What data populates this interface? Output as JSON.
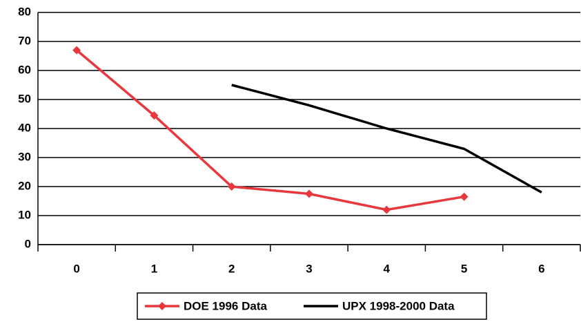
{
  "chart_data": {
    "type": "line",
    "categories": [
      "0",
      "1",
      "2",
      "3",
      "4",
      "5",
      "6"
    ],
    "series": [
      {
        "name": "DOE 1996 Data",
        "color": "#e8383d",
        "marker": "diamond",
        "values": [
          67,
          44.5,
          20,
          17.5,
          12,
          16.5,
          null
        ]
      },
      {
        "name": "UPX 1998-2000 Data",
        "color": "#000000",
        "marker": "none",
        "values": [
          null,
          null,
          55,
          48,
          40,
          33,
          18
        ]
      }
    ],
    "ylim": [
      0,
      80
    ],
    "yticks": [
      0,
      10,
      20,
      30,
      40,
      50,
      60,
      70,
      80
    ],
    "grid": true,
    "legend": "bottom"
  }
}
